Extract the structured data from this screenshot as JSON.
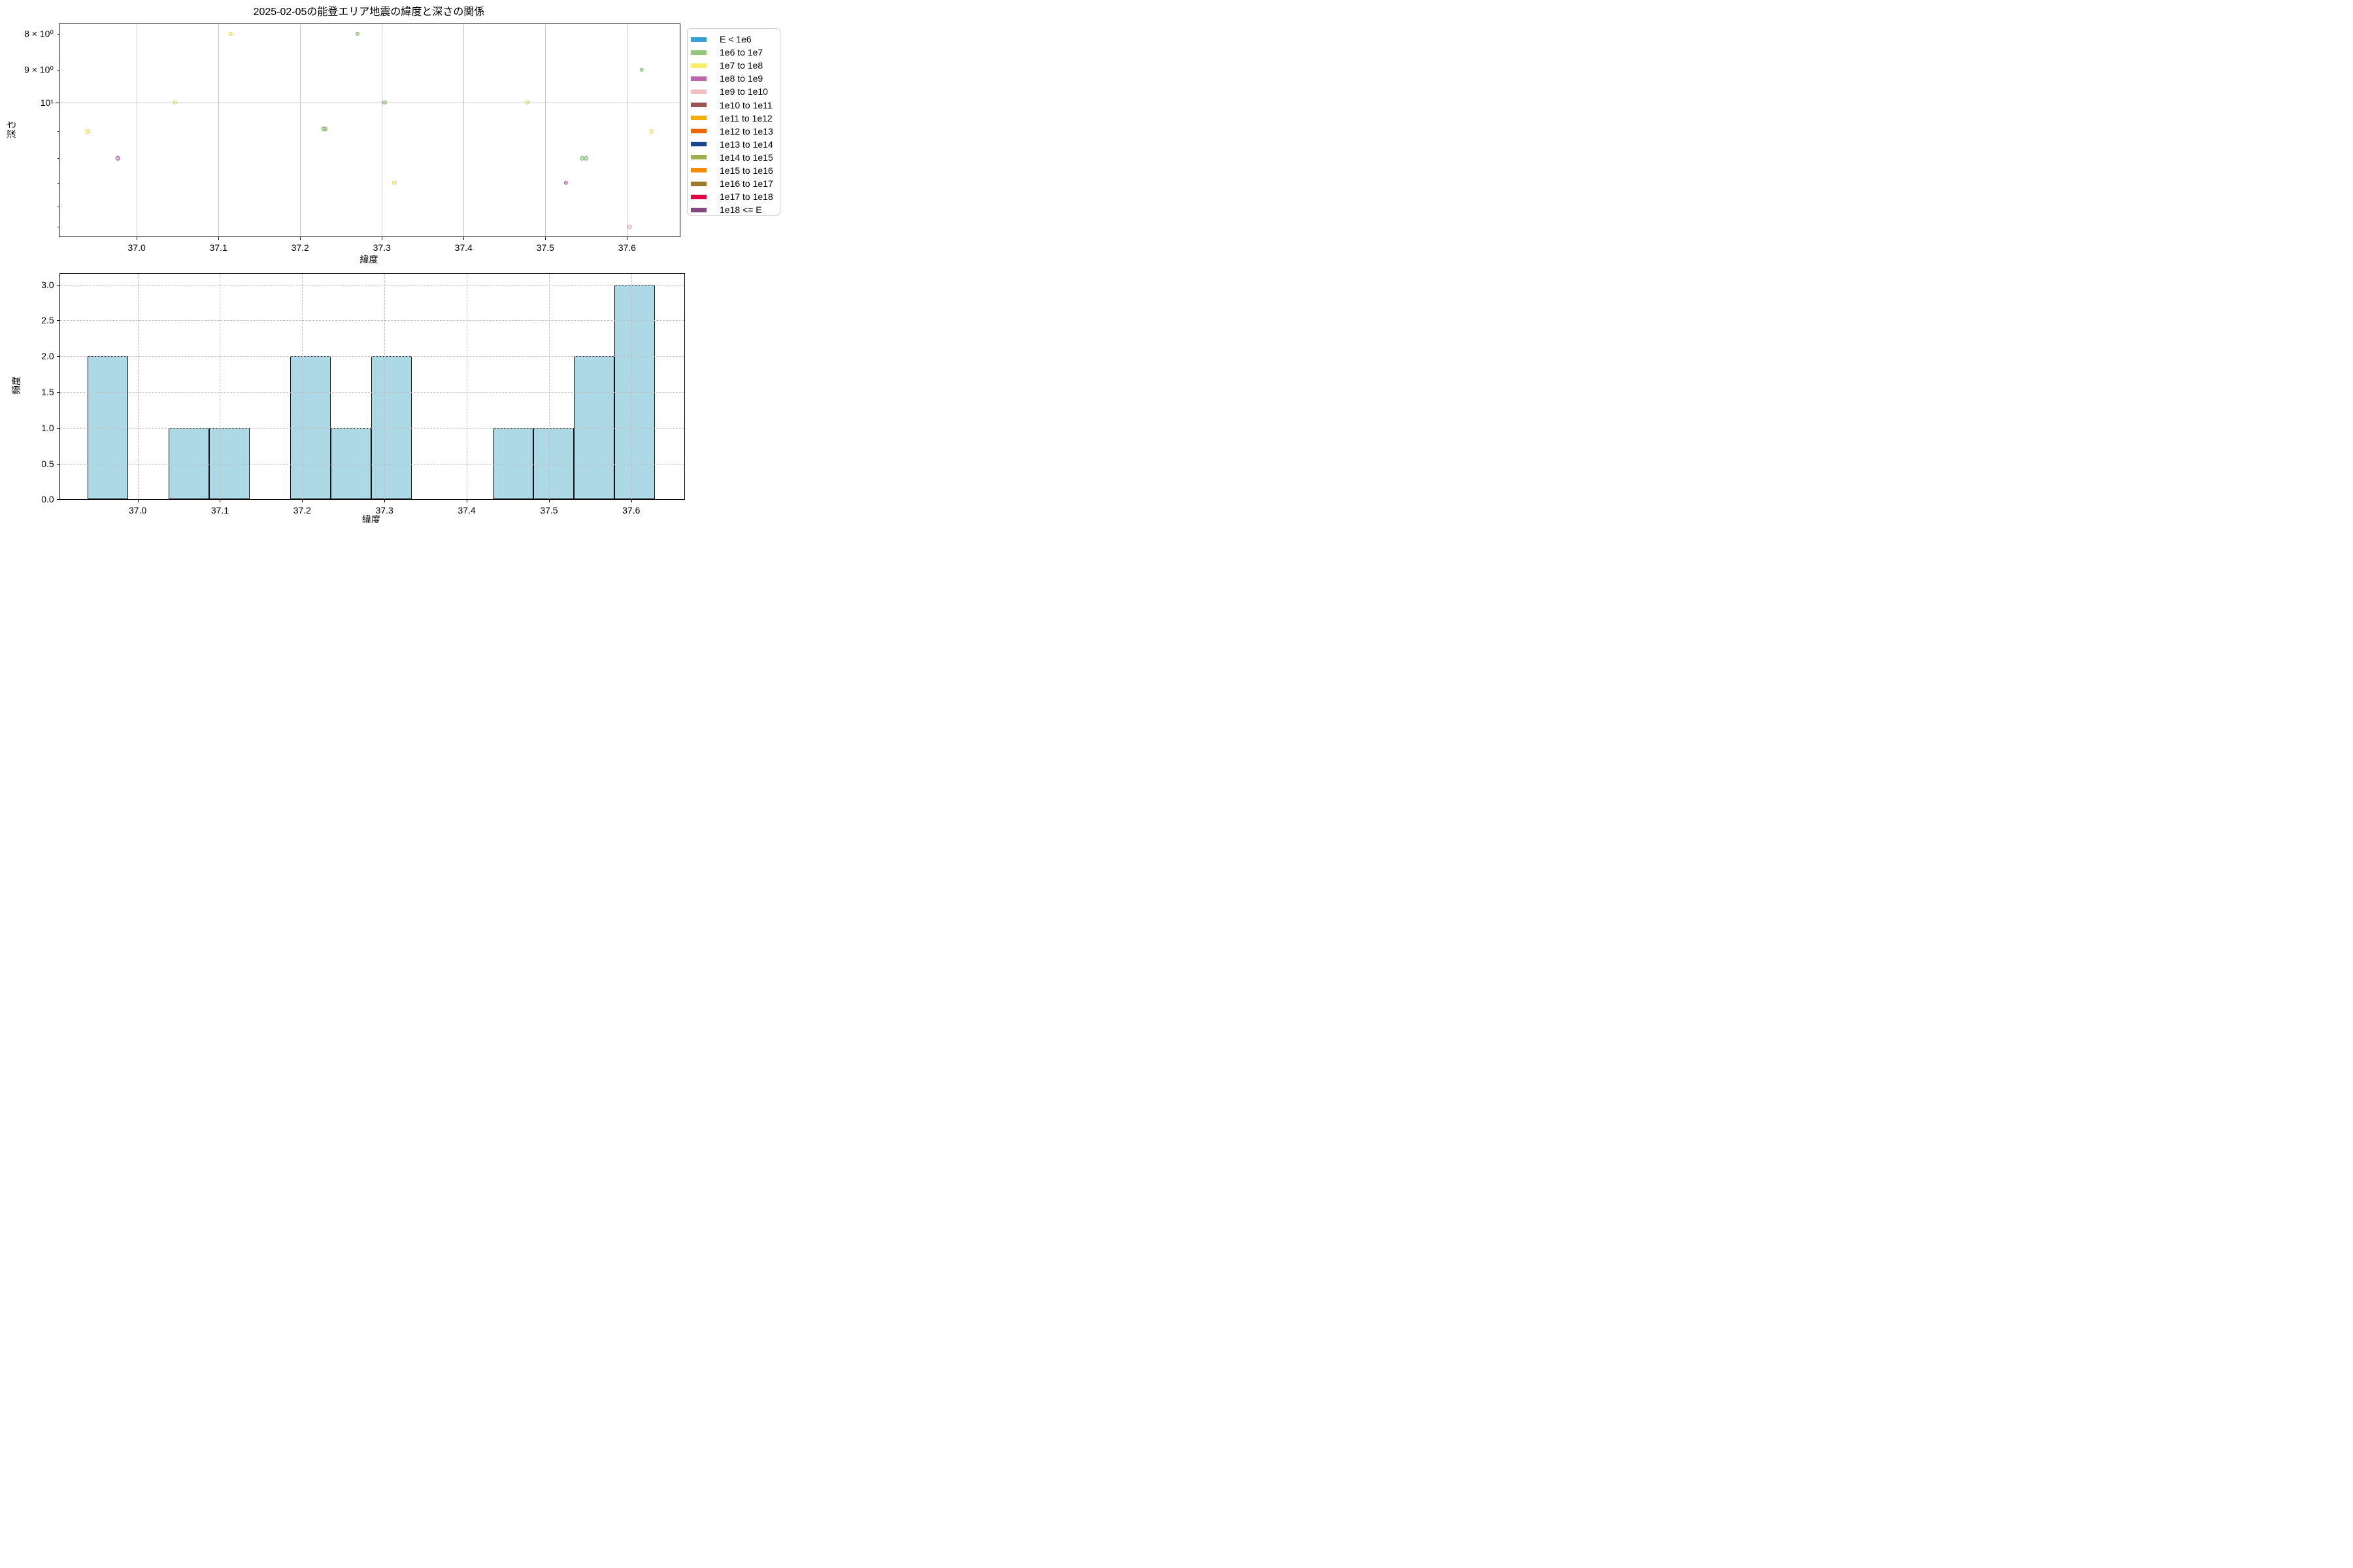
{
  "chart_data": [
    {
      "type": "scatter",
      "title": "2025-02-05の能登エリア地震の緯度と深さの関係",
      "xlabel": "緯度",
      "ylabel": "深さ",
      "x_scale": "linear",
      "y_scale": "log",
      "y_inverted": true,
      "xlim": [
        36.9055,
        37.6645
      ],
      "ylim": [
        7.75,
        15.48
      ],
      "x_ticks": [
        37.0,
        37.1,
        37.2,
        37.3,
        37.4,
        37.5,
        37.6
      ],
      "y_ticks": [
        {
          "value": 8,
          "label": "8 × 10⁰"
        },
        {
          "value": 9,
          "label": "9 × 10⁰"
        },
        {
          "value": 10,
          "label": "10¹"
        }
      ],
      "y_minor_ticks": [
        11,
        12,
        13,
        14,
        15
      ],
      "grid_x": [
        37.0,
        37.1,
        37.2,
        37.3,
        37.4,
        37.5,
        37.6
      ],
      "grid_y": [
        10
      ],
      "legend_position": "upper right outside",
      "series": [
        {
          "name": "1e6 to 1e7",
          "color": "#90c878",
          "points": [
            [
              37.229,
              10.9
            ],
            [
              37.231,
              10.9
            ],
            [
              37.27,
              8.0
            ],
            [
              37.303,
              10.0
            ],
            [
              37.545,
              12.0
            ],
            [
              37.55,
              12.0
            ],
            [
              37.618,
              9.0
            ]
          ]
        },
        {
          "name": "1e7 to 1e8",
          "color": "#f9f06a",
          "points": [
            [
              36.94,
              11.0
            ],
            [
              37.047,
              10.0
            ],
            [
              37.115,
              8.0
            ],
            [
              37.315,
              13.0
            ],
            [
              37.478,
              10.0
            ],
            [
              37.63,
              11.0
            ]
          ]
        },
        {
          "name": "1e8 to 1e9",
          "color": "#b966ae",
          "points": [
            [
              36.977,
              12.0
            ],
            [
              37.525,
              13.0
            ]
          ]
        },
        {
          "name": "1e9 to 1e10",
          "color": "#f4bfc0",
          "points": [
            [
              37.603,
              15.0
            ]
          ]
        }
      ]
    },
    {
      "type": "bar",
      "subtype": "histogram",
      "xlabel": "緯度",
      "ylabel": "頻度",
      "xlim": [
        36.9055,
        37.6645
      ],
      "ylim": [
        0,
        3.15
      ],
      "x_ticks": [
        37.0,
        37.1,
        37.2,
        37.3,
        37.4,
        37.5,
        37.6
      ],
      "y_ticks": [
        0.0,
        0.5,
        1.0,
        1.5,
        2.0,
        2.5,
        3.0
      ],
      "grid_style": "dashed",
      "bar_color": "#add8e6",
      "bar_edge_color": "#111111",
      "bin_edges": [
        36.9394,
        36.9887,
        37.0379,
        37.0872,
        37.1364,
        37.1857,
        37.2349,
        37.2842,
        37.3334,
        37.3827,
        37.4319,
        37.4812,
        37.5304,
        37.5797,
        37.6289
      ],
      "counts": [
        2,
        0,
        1,
        1,
        0,
        2,
        1,
        2,
        0,
        0,
        1,
        1,
        2,
        3
      ]
    }
  ],
  "legend": {
    "items": [
      {
        "label": "E < 1e6",
        "color": "#399fd9"
      },
      {
        "label": "1e6 to 1e7",
        "color": "#90c878"
      },
      {
        "label": "1e7 to 1e8",
        "color": "#f9f06a"
      },
      {
        "label": "1e8 to 1e9",
        "color": "#b966ae"
      },
      {
        "label": "1e9 to 1e10",
        "color": "#f4bfc0"
      },
      {
        "label": "1e10 to 1e11",
        "color": "#9b5353"
      },
      {
        "label": "1e11 to 1e12",
        "color": "#f5ae00"
      },
      {
        "label": "1e12 to 1e13",
        "color": "#ec6602"
      },
      {
        "label": "1e13 to 1e14",
        "color": "#1b4693"
      },
      {
        "label": "1e14 to 1e15",
        "color": "#9cb04e"
      },
      {
        "label": "1e15 to 1e16",
        "color": "#f68b00"
      },
      {
        "label": "1e16 to 1e17",
        "color": "#9d7a28"
      },
      {
        "label": "1e17 to 1e18",
        "color": "#e00045"
      },
      {
        "label": "1e18 <= E",
        "color": "#82477e"
      }
    ]
  }
}
